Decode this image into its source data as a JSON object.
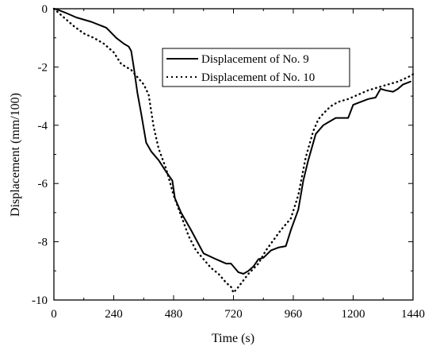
{
  "chart_data": {
    "type": "line",
    "xlabel": "Time (s)",
    "ylabel": "Displacement (mm/100)",
    "xlim": [
      0,
      1440
    ],
    "ylim": [
      -10,
      0
    ],
    "xticks": [
      0,
      240,
      480,
      720,
      960,
      1200,
      1440
    ],
    "yticks": [
      0,
      -2,
      -4,
      -6,
      -8,
      -10
    ],
    "grid": false,
    "legend_position": "top-right",
    "series": [
      {
        "name": "Displacement of  No. 9",
        "style": "solid",
        "color": "#000000",
        "x": [
          0,
          20,
          50,
          90,
          150,
          210,
          250,
          280,
          300,
          310,
          320,
          335,
          350,
          370,
          390,
          420,
          450,
          475,
          485,
          510,
          550,
          600,
          650,
          690,
          710,
          740,
          760,
          780,
          800,
          820,
          840,
          870,
          900,
          930,
          950,
          980,
          1000,
          1020,
          1050,
          1080,
          1100,
          1130,
          1150,
          1180,
          1200,
          1230,
          1260,
          1290,
          1310,
          1330,
          1360,
          1380,
          1400,
          1430
        ],
        "y": [
          0,
          -0.05,
          -0.15,
          -0.3,
          -0.45,
          -0.65,
          -1.0,
          -1.2,
          -1.3,
          -1.45,
          -2.0,
          -2.9,
          -3.6,
          -4.6,
          -4.9,
          -5.2,
          -5.6,
          -5.9,
          -6.5,
          -7.0,
          -7.6,
          -8.4,
          -8.6,
          -8.75,
          -8.75,
          -9.05,
          -9.1,
          -9.0,
          -8.85,
          -8.6,
          -8.55,
          -8.3,
          -8.2,
          -8.15,
          -7.6,
          -6.9,
          -5.9,
          -5.2,
          -4.3,
          -4.0,
          -3.9,
          -3.75,
          -3.75,
          -3.75,
          -3.3,
          -3.2,
          -3.1,
          -3.05,
          -2.75,
          -2.8,
          -2.85,
          -2.75,
          -2.6,
          -2.5
        ]
      },
      {
        "name": "Displacement of  No. 10",
        "style": "dotted",
        "color": "#000000",
        "x": [
          0,
          40,
          80,
          120,
          160,
          200,
          240,
          270,
          290,
          310,
          330,
          360,
          380,
          400,
          420,
          450,
          480,
          510,
          540,
          570,
          600,
          630,
          660,
          690,
          710,
          720,
          740,
          780,
          820,
          850,
          880,
          910,
          950,
          980,
          1010,
          1040,
          1060,
          1080,
          1110,
          1140,
          1180,
          1220,
          1260,
          1300,
          1340,
          1380,
          1420,
          1440
        ],
        "y": [
          0,
          -0.3,
          -0.6,
          -0.85,
          -1.0,
          -1.2,
          -1.5,
          -1.9,
          -2.0,
          -2.1,
          -2.3,
          -2.6,
          -2.95,
          -4.05,
          -4.8,
          -5.5,
          -6.4,
          -7.1,
          -7.8,
          -8.3,
          -8.6,
          -8.9,
          -9.1,
          -9.4,
          -9.55,
          -9.75,
          -9.55,
          -9.1,
          -8.75,
          -8.3,
          -7.95,
          -7.6,
          -7.2,
          -6.4,
          -5.1,
          -4.2,
          -3.8,
          -3.6,
          -3.35,
          -3.2,
          -3.1,
          -2.95,
          -2.8,
          -2.7,
          -2.6,
          -2.5,
          -2.35,
          -2.25
        ]
      }
    ]
  }
}
